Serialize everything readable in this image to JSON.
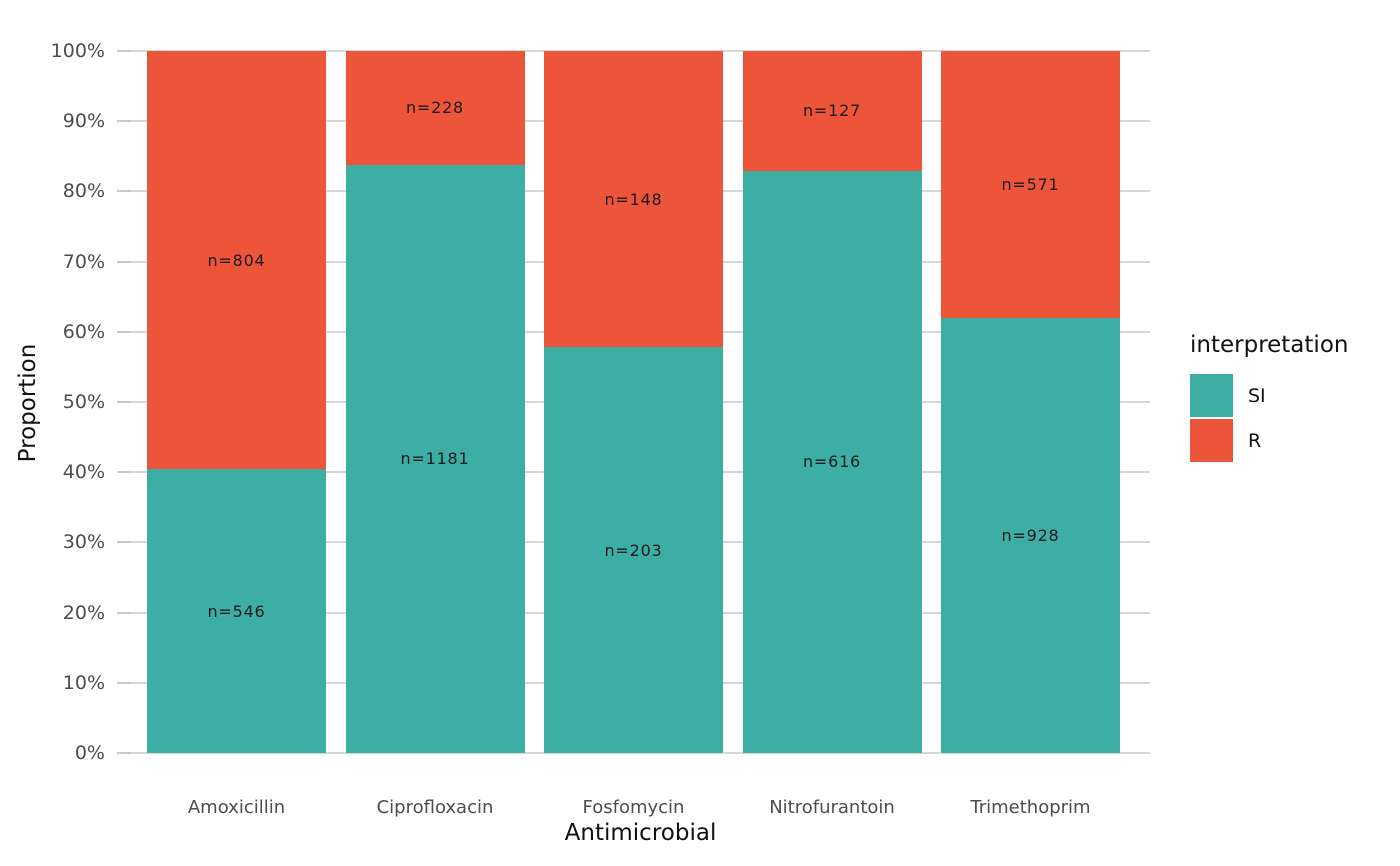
{
  "chart_data": {
    "type": "bar",
    "stacked": true,
    "percent_scale": true,
    "title": "",
    "xlabel": "Antimicrobial",
    "ylabel": "Proportion",
    "categories": [
      "Amoxicillin",
      "Ciprofloxacin",
      "Fosfomycin",
      "Nitrofurantoin",
      "Trimethoprim"
    ],
    "series": [
      {
        "name": "SI",
        "color": "#3CAEA3",
        "values": [
          546,
          1181,
          203,
          616,
          928
        ]
      },
      {
        "name": "R",
        "color": "#ED553B",
        "values": [
          804,
          228,
          148,
          127,
          571
        ]
      }
    ],
    "bar_labels": {
      "format": "n={value}",
      "SI": [
        "n=546",
        "n=1181",
        "n=203",
        "n=616",
        "n=928"
      ],
      "R": [
        "n=804",
        "n=228",
        "n=148",
        "n=127",
        "n=571"
      ]
    },
    "y_ticks": [
      "0%",
      "10%",
      "20%",
      "30%",
      "40%",
      "50%",
      "60%",
      "70%",
      "80%",
      "90%",
      "100%"
    ],
    "ylim": [
      0,
      1
    ],
    "grid": "horizontal",
    "legend": {
      "title": "interpretation",
      "position": "right",
      "entries": [
        {
          "label": "SI",
          "color": "#3CAEA3"
        },
        {
          "label": "R",
          "color": "#ED553B"
        }
      ]
    }
  },
  "style": {
    "background": "#ffffff",
    "grid_color": "#d6d6d6",
    "tick_color": "#c8c8c8",
    "axis_text_color": "#4d4d4d",
    "title_text_color": "#111111",
    "bar_label_color": "#1c1c1c"
  }
}
